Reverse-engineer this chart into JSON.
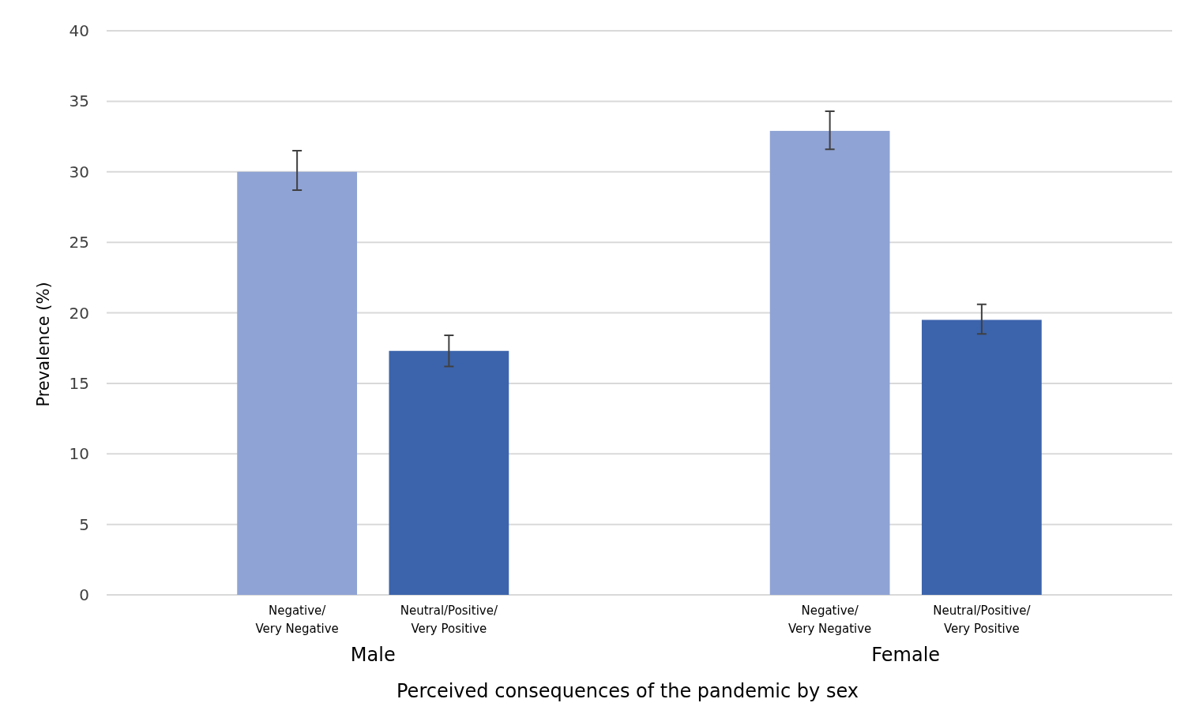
{
  "chart_data": {
    "type": "bar",
    "xlabel": "Perceived consequences of the pandemic by sex",
    "ylabel": "Prevalence (%)",
    "categories": [
      "Male",
      "Female"
    ],
    "series": [
      {
        "name": "Negative/ Very Negative",
        "color": "#8fa3d4",
        "values": [
          30.0,
          32.9
        ],
        "errors": [
          [
            28.7,
            31.5
          ],
          [
            31.6,
            34.3
          ]
        ]
      },
      {
        "name": "Neutral/Positive/ Very Positive",
        "color": "#3c64ac",
        "values": [
          17.3,
          19.5
        ],
        "errors": [
          [
            16.2,
            18.4
          ],
          [
            18.5,
            20.6
          ]
        ]
      }
    ],
    "ylim": [
      0,
      40
    ],
    "yticks": [
      0,
      5,
      10,
      15,
      20,
      25,
      30,
      35,
      40
    ],
    "grid": "y"
  }
}
